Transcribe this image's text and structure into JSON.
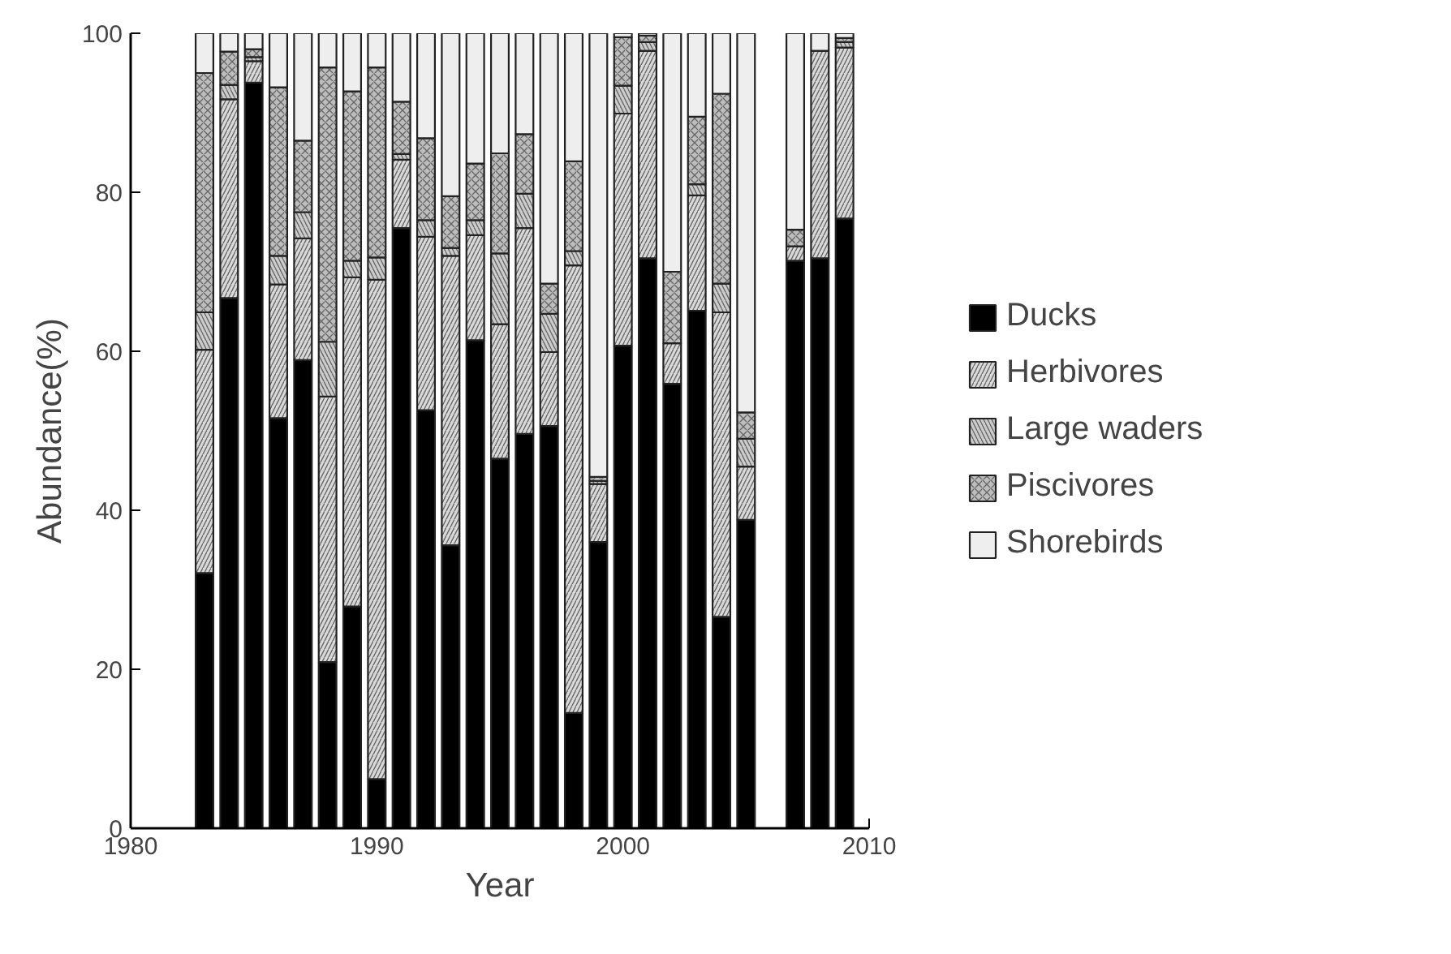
{
  "chart_data": {
    "type": "bar",
    "stacked": true,
    "xlabel": "Year",
    "ylabel": "Abundance(%)",
    "x": [
      1983,
      1984,
      1985,
      1986,
      1987,
      1988,
      1989,
      1990,
      1991,
      1992,
      1993,
      1994,
      1995,
      1996,
      1997,
      1998,
      1999,
      2000,
      2001,
      2002,
      2003,
      2004,
      2005,
      2007,
      2008,
      2009
    ],
    "series": [
      {
        "name": "Ducks",
        "color": "#000000",
        "values": [
          32.1,
          66.7,
          93.8,
          51.6,
          58.9,
          20.9,
          27.9,
          6.2,
          75.5,
          52.6,
          35.6,
          61.4,
          46.5,
          49.6,
          50.6,
          14.5,
          36.0,
          60.7,
          71.7,
          55.9,
          65.1,
          26.6,
          38.8,
          71.4,
          71.7,
          76.7
        ]
      },
      {
        "name": "Herbivores",
        "color": "#d9d9d9",
        "values": [
          28.1,
          25.0,
          2.7,
          16.8,
          15.3,
          33.4,
          41.4,
          62.8,
          8.6,
          21.8,
          36.4,
          13.2,
          16.9,
          25.9,
          9.3,
          56.3,
          7.3,
          29.2,
          26.1,
          5.1,
          14.5,
          38.3,
          6.7,
          1.8,
          26.1,
          21.5
        ]
      },
      {
        "name": "Large waders",
        "color": "#cccccc",
        "values": [
          4.7,
          1.8,
          0.5,
          3.6,
          3.3,
          6.9,
          2.1,
          2.8,
          0.7,
          2.1,
          1.0,
          1.9,
          8.9,
          4.3,
          4.8,
          1.8,
          0.4,
          3.5,
          1.1,
          0,
          1.4,
          3.6,
          3.5,
          0,
          0,
          0.7
        ]
      },
      {
        "name": "Piscivores",
        "color": "#bdbdbd",
        "values": [
          30.1,
          4.2,
          1.0,
          21.2,
          9.0,
          34.5,
          21.3,
          23.9,
          6.6,
          10.3,
          6.5,
          7.1,
          12.6,
          7.5,
          3.8,
          11.3,
          0.5,
          6.1,
          0.8,
          9.0,
          8.5,
          23.9,
          3.3,
          2.1,
          0,
          0.5
        ]
      },
      {
        "name": "Shorebirds",
        "color": "#eeeeee",
        "values": [
          5.0,
          2.3,
          2.0,
          6.8,
          13.5,
          4.3,
          7.3,
          4.3,
          8.6,
          13.2,
          20.5,
          16.4,
          15.1,
          12.7,
          31.5,
          16.1,
          55.8,
          0.5,
          0.3,
          30.0,
          10.5,
          7.6,
          47.7,
          24.7,
          2.2,
          0.6
        ]
      }
    ],
    "xlim": [
      1980,
      2010
    ],
    "xticks": [
      1980,
      1990,
      2000,
      2010
    ],
    "ylim": [
      0,
      100
    ],
    "yticks": [
      0,
      20,
      40,
      60,
      80,
      100
    ],
    "grid": false,
    "legend": "right"
  }
}
